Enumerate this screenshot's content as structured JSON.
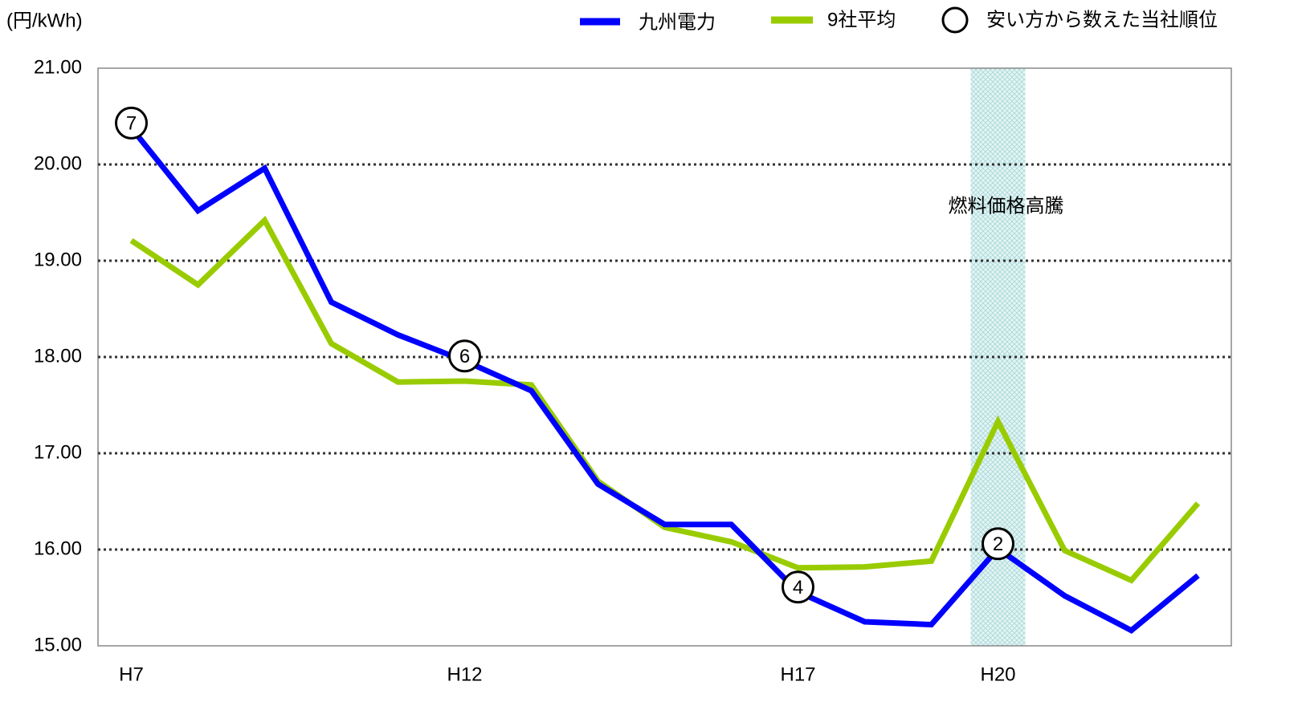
{
  "chart_data": {
    "type": "line",
    "y_label": "(円/kWh)",
    "categories": [
      "H7",
      null,
      null,
      null,
      null,
      "H12",
      null,
      null,
      null,
      null,
      "H17",
      null,
      null,
      "H20",
      null,
      null,
      null
    ],
    "series": [
      {
        "name": "九州電力",
        "color": "#0000ff",
        "values": [
          20.38,
          19.52,
          19.96,
          18.57,
          18.23,
          17.96,
          17.65,
          16.68,
          16.26,
          16.26,
          15.56,
          15.25,
          15.22,
          16.01,
          15.52,
          15.16,
          15.73
        ]
      },
      {
        "name": "9社平均",
        "color": "#99cc00",
        "values": [
          19.21,
          18.75,
          19.42,
          18.14,
          17.74,
          17.75,
          17.71,
          16.71,
          16.23,
          16.08,
          15.81,
          15.82,
          15.88,
          17.33,
          15.99,
          15.68,
          16.48
        ]
      }
    ],
    "rank_legend": "安い方から数えた当社順位",
    "rank_annotations": [
      {
        "x": "H7",
        "text": "7"
      },
      {
        "x": "H12",
        "text": "6"
      },
      {
        "x": "H17",
        "text": "4"
      },
      {
        "x": "H20",
        "text": "2"
      }
    ],
    "highlight": {
      "x": "H20",
      "label": "燃料価格高騰"
    },
    "ylim": [
      15,
      21
    ],
    "yticks": [
      {
        "value": 15,
        "label": "15.00"
      },
      {
        "value": 16,
        "label": "16.00"
      },
      {
        "value": 17,
        "label": "17.00"
      },
      {
        "value": 18,
        "label": "18.00"
      },
      {
        "value": 19,
        "label": "19.00"
      },
      {
        "value": 20,
        "label": "20.00"
      },
      {
        "value": 21,
        "label": "21.00"
      }
    ],
    "grid": true
  }
}
